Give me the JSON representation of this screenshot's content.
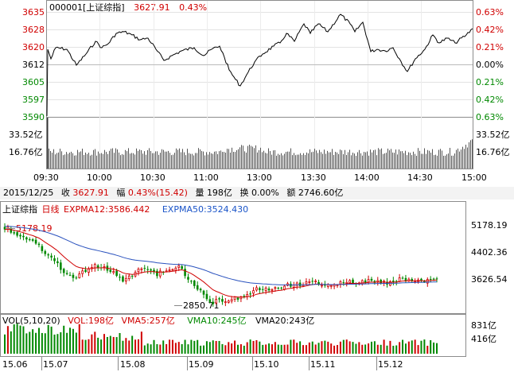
{
  "intraday": {
    "code": "000001",
    "name": "[上证综指]",
    "price": "3627.91",
    "change_pct": "0.43%",
    "price_levels": [
      "3635",
      "3628",
      "3620",
      "3612",
      "3605",
      "3597",
      "3590"
    ],
    "pct_levels": [
      "0.63%",
      "0.42%",
      "0.21%",
      "0.00%",
      "0.21%",
      "0.42%",
      "0.63%"
    ],
    "vol_levels": [
      "33.52亿",
      "16.76亿"
    ],
    "times": [
      "09:30",
      "10:00",
      "10:30",
      "11:00",
      "13:00",
      "13:30",
      "14:00",
      "14:30",
      "15:00"
    ]
  },
  "info_bar": {
    "date": "2015/12/25",
    "close_label": "收",
    "close": "3627.91",
    "amp_label": "幅",
    "amp": "0.43%(15.42)",
    "vol_label": "量",
    "vol": "198亿",
    "turnover_label": "换",
    "turnover": "0.00%",
    "amount_label": "额",
    "amount": "2746.60亿"
  },
  "kline": {
    "name": "上证综指",
    "period": "日线",
    "expma12": "EXPMA12:3586.442",
    "expma50": "EXPMA50:3524.430",
    "high_label": "5178.19",
    "low_label": "2850.71",
    "price_levels": [
      "5178.19",
      "4402.36",
      "3626.54"
    ]
  },
  "vol": {
    "title": "VOL(5,10,20)",
    "vol": "VOL:198亿",
    "vma5": "VMA5:257亿",
    "vma10": "VMA10:245亿",
    "vma20": "VMA20:243亿",
    "levels": [
      "831亿",
      "416亿"
    ]
  },
  "months": [
    "15.06",
    "15.07",
    "15.08",
    "15.09",
    "15.10",
    "15.11",
    "15.12"
  ],
  "colors": {
    "up": "#d00000",
    "down": "#008800",
    "intraday_line": "#000000",
    "expma50": "#2a52be"
  }
}
